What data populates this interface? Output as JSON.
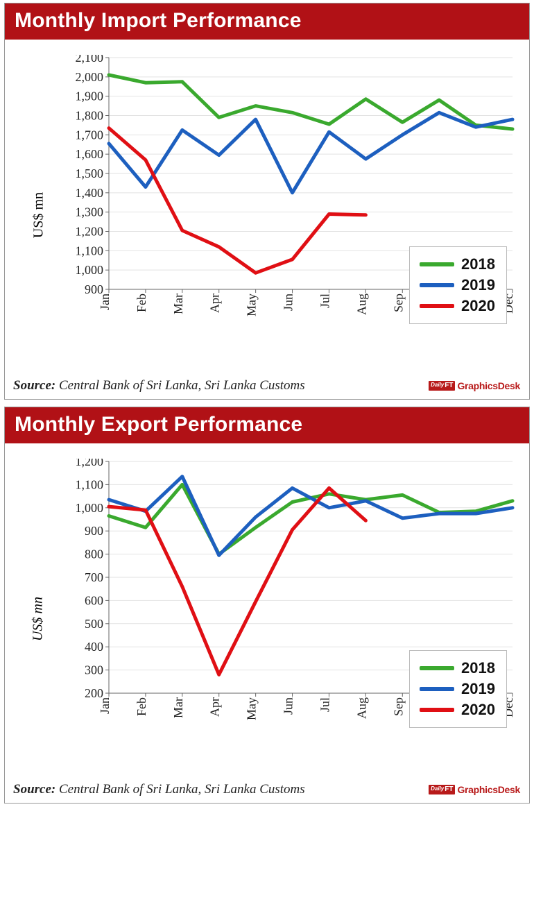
{
  "months": [
    "Jan",
    "Feb",
    "Mar",
    "Apr",
    "May",
    "Jun",
    "Jul",
    "Aug",
    "Sep",
    "Oct",
    "Nov",
    "Dec"
  ],
  "colors": {
    "series_2018": "#3aa92e",
    "series_2019": "#1d5fbf",
    "series_2020": "#e00f14",
    "grid": "#e2e2e2",
    "title_bg": "#b11116",
    "title_fg": "#ffffff",
    "bg": "#ffffff"
  },
  "legend_labels": {
    "y2018": "2018",
    "y2019": "2019",
    "y2020": "2020"
  },
  "source_label": "Source:",
  "source_text": "Central Bank of Sri Lanka, Sri Lanka Customs",
  "graphics_badge": {
    "brand": "DailyFT",
    "text": "GraphicsDesk"
  },
  "import_chart": {
    "title": "Monthly Import Performance",
    "type": "line",
    "y_label": "US$ mn",
    "y_label_italic": false,
    "ylim": [
      900,
      2100
    ],
    "ytick_step": 100,
    "line_width": 5,
    "title_fontsize": 30,
    "tick_fontsize": 18,
    "ylabel_fontsize": 20,
    "series": {
      "2018": [
        2010,
        1970,
        1975,
        1790,
        1850,
        1815,
        1755,
        1885,
        1765,
        1880,
        1750,
        1730
      ],
      "2019": [
        1655,
        1430,
        1725,
        1595,
        1780,
        1400,
        1715,
        1575,
        1700,
        1815,
        1740,
        1780
      ],
      "2020": [
        1735,
        1570,
        1205,
        1120,
        985,
        1055,
        1290,
        1285,
        null,
        null,
        null,
        null
      ]
    }
  },
  "export_chart": {
    "title": "Monthly Export Performance",
    "type": "line",
    "y_label": "US$ mn",
    "y_label_italic": true,
    "ylim": [
      200,
      1200
    ],
    "ytick_step": 100,
    "line_width": 5,
    "title_fontsize": 30,
    "tick_fontsize": 18,
    "ylabel_fontsize": 20,
    "series": {
      "2018": [
        965,
        915,
        1100,
        800,
        915,
        1025,
        1060,
        1035,
        1055,
        980,
        985,
        1030
      ],
      "2019": [
        1035,
        985,
        1135,
        795,
        960,
        1085,
        1000,
        1030,
        955,
        975,
        975,
        1000
      ],
      "2020": [
        1005,
        990,
        660,
        280,
        595,
        905,
        1085,
        945,
        null,
        null,
        null,
        null
      ]
    }
  }
}
